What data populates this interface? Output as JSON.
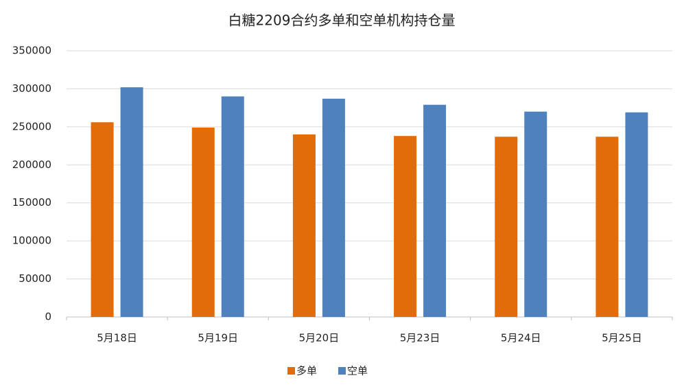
{
  "chart_data": {
    "type": "bar",
    "title": "白糖2209合约多单和空单机构持仓量",
    "categories": [
      "5月18日",
      "5月19日",
      "5月20日",
      "5月23日",
      "5月24日",
      "5月25日"
    ],
    "series": [
      {
        "name": "多单",
        "color": "#e36c0a",
        "values": [
          256000,
          249000,
          240000,
          238000,
          237000,
          237000
        ]
      },
      {
        "name": "空单",
        "color": "#4f81bd",
        "values": [
          302000,
          290000,
          287000,
          279000,
          270000,
          269000
        ]
      }
    ],
    "ylim": [
      0,
      350000
    ],
    "yticks": [
      0,
      50000,
      100000,
      150000,
      200000,
      250000,
      300000,
      350000
    ],
    "grid": true,
    "legend": "bottom"
  }
}
